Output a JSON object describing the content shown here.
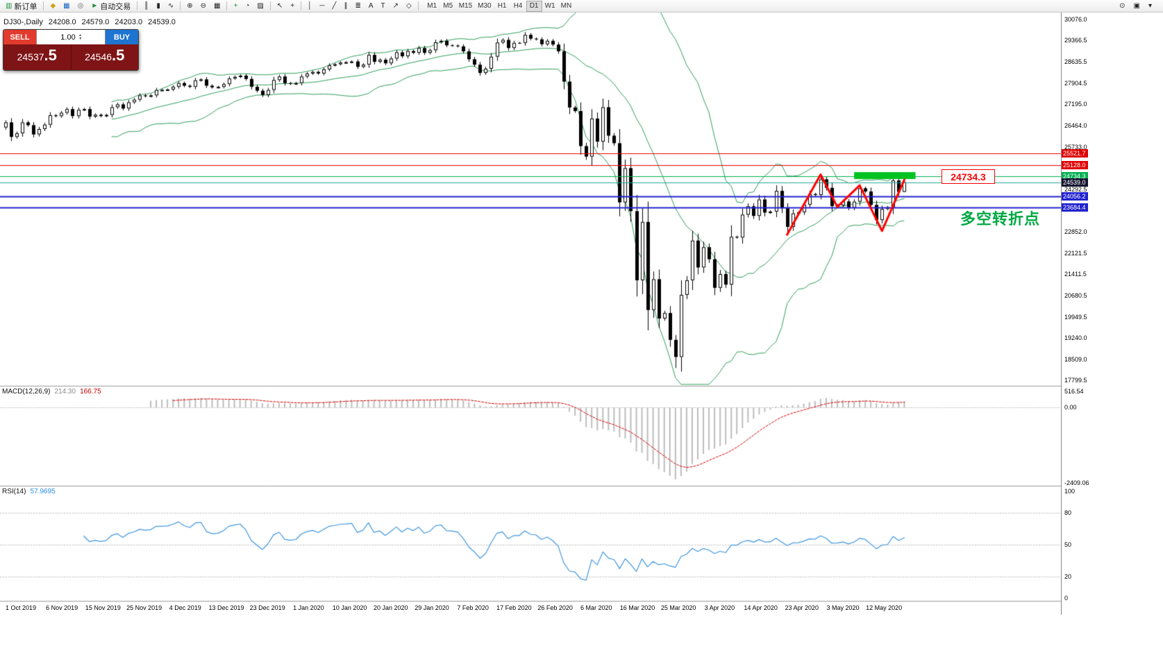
{
  "toolbar": {
    "buttons": [
      {
        "name": "new-order-button",
        "glyph": "▥",
        "glyph_color": "#1e8e3e",
        "label": "新订单"
      },
      {
        "name": "sep"
      },
      {
        "name": "alerts-button",
        "glyph": "◆",
        "glyph_color": "#d4a017"
      },
      {
        "name": "market-watch-button",
        "glyph": "▦",
        "glyph_color": "#1565c0"
      },
      {
        "name": "refresh-button",
        "glyph": "◎",
        "glyph_color": "#666666"
      },
      {
        "name": "autotrade-button",
        "glyph": "►",
        "glyph_color": "#1e8e3e",
        "label": "自动交易"
      },
      {
        "name": "sep"
      },
      {
        "name": "bars-chart-button",
        "glyph": "║"
      },
      {
        "name": "candles-chart-button",
        "glyph": "▮"
      },
      {
        "name": "line-chart-button",
        "glyph": "∿"
      },
      {
        "name": "sep"
      },
      {
        "name": "zoom-in-button",
        "glyph": "⊕"
      },
      {
        "name": "zoom-out-button",
        "glyph": "⊖"
      },
      {
        "name": "tile-windows-button",
        "glyph": "▦"
      },
      {
        "name": "sep"
      },
      {
        "name": "indicators-button",
        "glyph": "+",
        "glyph_color": "#1e8e3e"
      },
      {
        "name": "periods-button",
        "glyph": "◔"
      },
      {
        "name": "templates-button",
        "glyph": "▨"
      },
      {
        "name": "sep"
      },
      {
        "name": "cursor-button",
        "glyph": "↖"
      },
      {
        "name": "crosshair-button",
        "glyph": "+"
      },
      {
        "name": "sep"
      },
      {
        "name": "vertical-line-button",
        "glyph": "│"
      },
      {
        "name": "horizontal-line-button",
        "glyph": "─"
      },
      {
        "name": "trendline-button",
        "glyph": "╱"
      },
      {
        "name": "channel-button",
        "glyph": "∥"
      },
      {
        "name": "fibonacci-button",
        "glyph": "≣"
      },
      {
        "name": "text-button",
        "glyph": "A"
      },
      {
        "name": "label-button",
        "glyph": "T"
      },
      {
        "name": "arrows-button",
        "glyph": "↗"
      },
      {
        "name": "shapes-button",
        "glyph": "◇"
      },
      {
        "name": "sep"
      }
    ],
    "timeframes": {
      "items": [
        "M1",
        "M5",
        "M15",
        "M30",
        "H1",
        "H4",
        "D1",
        "W1",
        "MN"
      ],
      "active": "D1"
    },
    "right_buttons": [
      {
        "name": "search-button",
        "glyph": "⊙"
      },
      {
        "name": "windows-button",
        "glyph": "▣"
      },
      {
        "name": "options-button",
        "glyph": "▾"
      }
    ]
  },
  "chart": {
    "symbol_period": "DJ30-,Daily",
    "open": "24208.0",
    "high": "24579.0",
    "low": "24203.0",
    "close": "24539.0"
  },
  "trade_panel": {
    "sell_label": "SELL",
    "buy_label": "BUY",
    "volume": "1.00",
    "spin_up": "▴",
    "spin_down": "▾",
    "sell_price_main": "24537",
    "sell_price_frac": ".5",
    "buy_price_main": "24546",
    "buy_price_frac": ".5"
  },
  "price_axis": {
    "scale_labels": [
      "30076.0",
      "29366.5",
      "28635.5",
      "27904.5",
      "27195.0",
      "26464.0",
      "25733.0",
      "24292.5",
      "22852.0",
      "22121.5",
      "21411.5",
      "20680.5",
      "19949.5",
      "19240.0",
      "18509.0",
      "17799.5"
    ],
    "line_labels": [
      {
        "text": "25521.7",
        "bg": "#e00000",
        "fg": "#ffffff"
      },
      {
        "text": "25128.0",
        "bg": "#e00000",
        "fg": "#ffffff"
      },
      {
        "text": "24734.3",
        "bg": "#00b050",
        "fg": "#ffffff"
      },
      {
        "text": "24539.0",
        "bg": "#151531",
        "fg": "#ffffff"
      },
      {
        "text": "24056.2",
        "bg": "#2222d0",
        "fg": "#ffffff"
      },
      {
        "text": "23684.4",
        "bg": "#2222d0",
        "fg": "#ffffff"
      }
    ]
  },
  "macd": {
    "label": "MACD(12,26,9)",
    "value_main": "214.30",
    "value_signal": "166.75",
    "axis": [
      "516.54",
      "0.00",
      "-2409.06"
    ],
    "range": [
      520,
      -2420
    ],
    "hist_color": "#bdbdbd",
    "signal_color": "#d40000"
  },
  "rsi": {
    "label": "RSI(14)",
    "value": "57.9695",
    "axis": [
      "100",
      "80",
      "50",
      "20",
      "0"
    ],
    "levels": [
      80,
      50,
      20
    ],
    "color": "#3e96e0"
  },
  "date_axis": {
    "labels": [
      "1 Oct 2019",
      "6 Nov 2019",
      "15 Nov 2019",
      "25 Nov 2019",
      "4 Dec 2019",
      "13 Dec 2019",
      "23 Dec 2019",
      "1 Jan 2020",
      "10 Jan 2020",
      "20 Jan 2020",
      "29 Jan 2020",
      "7 Feb 2020",
      "17 Feb 2020",
      "26 Feb 2020",
      "6 Mar 2020",
      "16 Mar 2020",
      "25 Mar 2020",
      "3 Apr 2020",
      "14 Apr 2020",
      "23 Apr 2020",
      "3 May 2020",
      "12 May 2020"
    ]
  },
  "chart_data": {
    "type": "candlestick",
    "symbol": "DJ30",
    "timeframe": "Daily",
    "ylim": [
      17799.5,
      30076.0
    ],
    "first_open": 26400,
    "closes": [
      26573,
      26078,
      26201,
      26573,
      26478,
      26164,
      26346,
      26496,
      26816,
      26787,
      26900,
      27025,
      26787,
      27001,
      27025,
      26770,
      26833,
      26788,
      26827,
      27090,
      27186,
      27046,
      27256,
      27347,
      27492,
      27462,
      27493,
      27674,
      27681,
      27691,
      27783,
      27911,
      27821,
      27782,
      28004,
      28036,
      27821,
      27766,
      27781,
      27876,
      28066,
      28121,
      28164,
      28051,
      27783,
      27650,
      27502,
      27677,
      28015,
      28135,
      27910,
      27882,
      27912,
      28132,
      28235,
      28291,
      28236,
      28376,
      28515,
      28551,
      28608,
      28621,
      28645,
      28462,
      28538,
      28869,
      28634,
      28704,
      28584,
      28745,
      28957,
      28823,
      29001,
      28940,
      29103,
      28939,
      29030,
      29297,
      29348,
      29196,
      29186,
      29160,
      28990,
      28722,
      28535,
      28256,
      28399,
      28808,
      29290,
      29380,
      29103,
      29277,
      29276,
      29551,
      29423,
      29398,
      29232,
      29348,
      29220,
      28992,
      27961,
      27081,
      26958,
      25767,
      25409,
      26703,
      25917,
      27090,
      26121,
      25865,
      23851,
      25018,
      23553,
      21201,
      23186,
      20189,
      21237,
      19899,
      20087,
      19174,
      18592,
      20705,
      21201,
      22552,
      21637,
      22327,
      21917,
      20944,
      21413,
      21053,
      22680,
      22654,
      23434,
      23719,
      23391,
      23950,
      23504,
      23538,
      24242,
      23650,
      23019,
      23476,
      23515,
      23775,
      24134,
      24102,
      24634,
      24346,
      23724,
      23750,
      23883,
      23665,
      23876,
      24331,
      24222,
      23765,
      23248,
      23625,
      23685,
      24597,
      24206,
      24539
    ],
    "low_overrides": {
      "120": 18214
    },
    "last_candle": {
      "open": 24208.0,
      "high": 24579.0,
      "low": 24203.0,
      "close": 24539.0
    },
    "bollinger": {
      "period": 20,
      "deviation": 2,
      "color": "#2e9e5a"
    },
    "hlines": [
      {
        "price": 25521.7,
        "color": "#e80000",
        "width": 1
      },
      {
        "price": 25128.0,
        "color": "#e80000",
        "width": 1
      },
      {
        "price": 24734.3,
        "color": "#00b050",
        "width": 1
      },
      {
        "price": 24056.2,
        "color": "#2222d0",
        "width": 2
      },
      {
        "price": 23684.4,
        "color": "#2222d0",
        "width": 2
      }
    ],
    "bid_line": {
      "price": 24539.0,
      "color": "#26a69a"
    },
    "annotations": {
      "rect": {
        "i1": 152,
        "i2": 163,
        "p_top": 24880,
        "p_bottom": 24645,
        "color": "#00c220"
      },
      "zigzag": {
        "color": "#ff0000",
        "points": [
          [
            140,
            22750
          ],
          [
            146,
            24800
          ],
          [
            149,
            23700
          ],
          [
            153,
            24430
          ],
          [
            157,
            22880
          ],
          [
            161,
            24620
          ]
        ]
      },
      "callout": {
        "text": "24734.3"
      },
      "note": {
        "text": "多空转折点"
      }
    }
  }
}
